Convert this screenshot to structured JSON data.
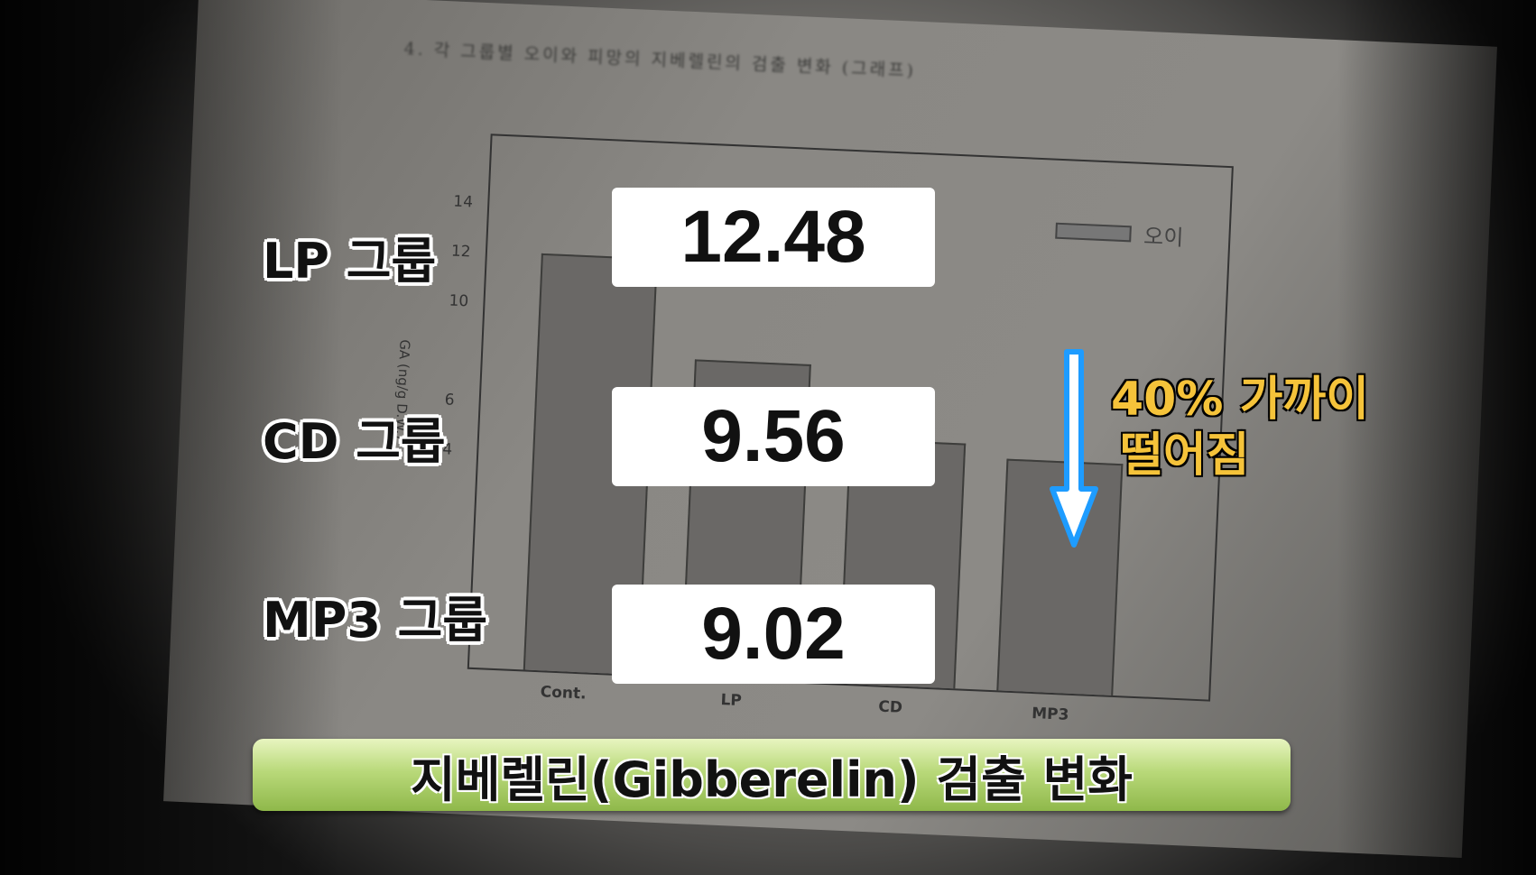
{
  "document": {
    "title": "4. 각 그룹별 오이와 피망의 지베렐린의 검출 변화 (그래프)",
    "chart": {
      "ylabel": "GA (ng/g D.W.)",
      "yticks": [
        "4",
        "6",
        "10",
        "12",
        "14"
      ],
      "xticks": [
        "Cont.",
        "LP",
        "CD",
        "MP3"
      ],
      "legend": "오이"
    }
  },
  "overlay": {
    "groups": [
      {
        "label": "LP 그룹",
        "value": "12.48"
      },
      {
        "label": "CD 그룹",
        "value": "9.56"
      },
      {
        "label": "MP3 그룹",
        "value": "9.02"
      }
    ],
    "drop_text_line1": "40% 가까이",
    "drop_text_line2": "떨어짐",
    "arrow_icon": "down-arrow-icon",
    "caption": "지베렐린(Gibberelin) 검출 변화",
    "colors": {
      "arrow": "#1e9cff",
      "drop_text": "#f5c33a",
      "caption_bg": "#b9d97a"
    }
  }
}
